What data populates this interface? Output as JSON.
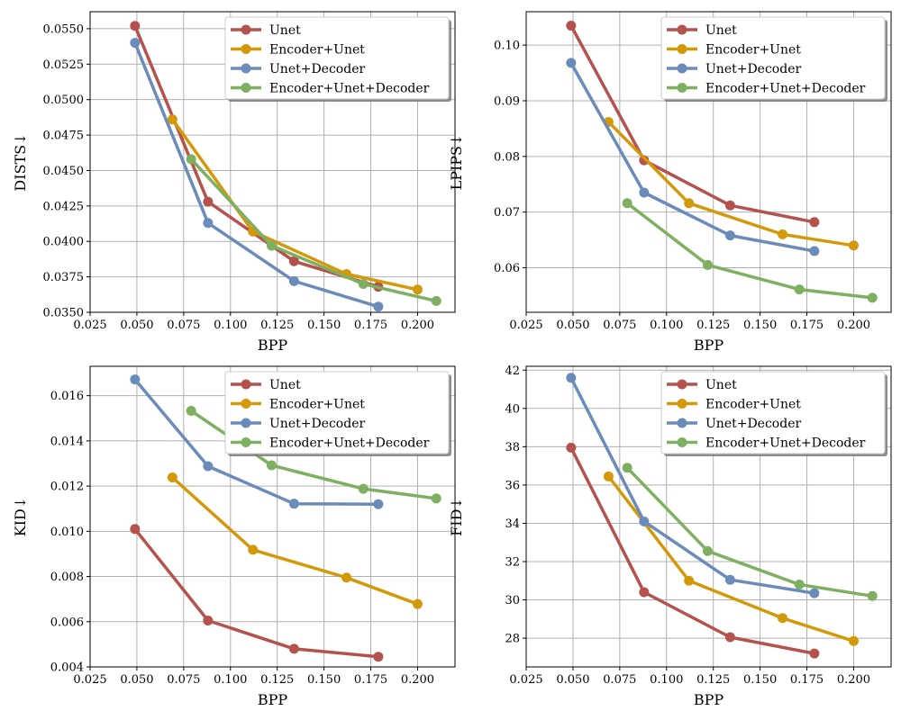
{
  "colors": {
    "Unet": "#b5524e",
    "Encoder+Unet": "#d4990a",
    "Unet+Decoder": "#6b8cba",
    "Encoder+Unet+Decoder": "#7fb061"
  },
  "chart_data": [
    {
      "type": "line",
      "xlabel": "BPP",
      "ylabel": "DISTS↓",
      "xlim": [
        0.025,
        0.22
      ],
      "ylim": [
        0.035,
        0.0562
      ],
      "xticks": [
        0.025,
        0.05,
        0.075,
        0.1,
        0.125,
        0.15,
        0.175,
        0.2
      ],
      "xtick_labels": [
        "0.025",
        "0.050",
        "0.075",
        "0.100",
        "0.125",
        "0.150",
        "0.175",
        "0.200"
      ],
      "yticks": [
        0.035,
        0.0375,
        0.04,
        0.0425,
        0.045,
        0.0475,
        0.05,
        0.0525,
        0.055
      ],
      "ytick_labels": [
        "0.0350",
        "0.0375",
        "0.0400",
        "0.0425",
        "0.0450",
        "0.0475",
        "0.0500",
        "0.0525",
        "0.0550"
      ],
      "legend_position": "top-right",
      "series": [
        {
          "name": "Unet",
          "x": [
            0.049,
            0.088,
            0.134,
            0.179
          ],
          "y": [
            0.0552,
            0.0428,
            0.0386,
            0.0368
          ]
        },
        {
          "name": "Encoder+Unet",
          "x": [
            0.069,
            0.112,
            0.162,
            0.2
          ],
          "y": [
            0.0486,
            0.0407,
            0.0377,
            0.0366
          ]
        },
        {
          "name": "Unet+Decoder",
          "x": [
            0.049,
            0.088,
            0.134,
            0.179
          ],
          "y": [
            0.054,
            0.0413,
            0.0372,
            0.0354
          ]
        },
        {
          "name": "Encoder+Unet+Decoder",
          "x": [
            0.079,
            0.122,
            0.171,
            0.21
          ],
          "y": [
            0.0458,
            0.0397,
            0.037,
            0.0358
          ]
        }
      ]
    },
    {
      "type": "line",
      "xlabel": "BPP",
      "ylabel": "LPIPS↓",
      "xlim": [
        0.025,
        0.22
      ],
      "ylim": [
        0.052,
        0.106
      ],
      "xticks": [
        0.025,
        0.05,
        0.075,
        0.1,
        0.125,
        0.15,
        0.175,
        0.2
      ],
      "xtick_labels": [
        "0.025",
        "0.050",
        "0.075",
        "0.100",
        "0.125",
        "0.150",
        "0.175",
        "0.200"
      ],
      "yticks": [
        0.06,
        0.07,
        0.08,
        0.09,
        0.1
      ],
      "ytick_labels": [
        "0.06",
        "0.07",
        "0.08",
        "0.09",
        "0.10"
      ],
      "legend_position": "top-right",
      "series": [
        {
          "name": "Unet",
          "x": [
            0.049,
            0.088,
            0.134,
            0.179
          ],
          "y": [
            0.1035,
            0.0793,
            0.0712,
            0.0682
          ]
        },
        {
          "name": "Encoder+Unet",
          "x": [
            0.069,
            0.112,
            0.162,
            0.2
          ],
          "y": [
            0.0862,
            0.0716,
            0.066,
            0.064
          ]
        },
        {
          "name": "Unet+Decoder",
          "x": [
            0.049,
            0.088,
            0.134,
            0.179
          ],
          "y": [
            0.0968,
            0.0735,
            0.0658,
            0.063
          ]
        },
        {
          "name": "Encoder+Unet+Decoder",
          "x": [
            0.079,
            0.122,
            0.171,
            0.21
          ],
          "y": [
            0.0716,
            0.0605,
            0.0561,
            0.0546
          ]
        }
      ]
    },
    {
      "type": "line",
      "xlabel": "BPP",
      "ylabel": "KID↓",
      "xlim": [
        0.025,
        0.22
      ],
      "ylim": [
        0.004,
        0.0173
      ],
      "xticks": [
        0.025,
        0.05,
        0.075,
        0.1,
        0.125,
        0.15,
        0.175,
        0.2
      ],
      "xtick_labels": [
        "0.025",
        "0.050",
        "0.075",
        "0.100",
        "0.125",
        "0.150",
        "0.175",
        "0.200"
      ],
      "yticks": [
        0.004,
        0.006,
        0.008,
        0.01,
        0.012,
        0.014,
        0.016
      ],
      "ytick_labels": [
        "0.004",
        "0.006",
        "0.008",
        "0.010",
        "0.012",
        "0.014",
        "0.016"
      ],
      "legend_position": "top-right",
      "series": [
        {
          "name": "Unet",
          "x": [
            0.049,
            0.088,
            0.134,
            0.179
          ],
          "y": [
            0.0101,
            0.00605,
            0.0048,
            0.00445
          ]
        },
        {
          "name": "Encoder+Unet",
          "x": [
            0.069,
            0.112,
            0.162,
            0.2
          ],
          "y": [
            0.01238,
            0.00918,
            0.00795,
            0.00678
          ]
        },
        {
          "name": "Unet+Decoder",
          "x": [
            0.049,
            0.088,
            0.134,
            0.179
          ],
          "y": [
            0.01672,
            0.01288,
            0.01122,
            0.0112
          ]
        },
        {
          "name": "Encoder+Unet+Decoder",
          "x": [
            0.079,
            0.122,
            0.171,
            0.21
          ],
          "y": [
            0.01533,
            0.01292,
            0.01188,
            0.01145
          ]
        }
      ]
    },
    {
      "type": "line",
      "xlabel": "BPP",
      "ylabel": "FID↓",
      "xlim": [
        0.025,
        0.22
      ],
      "ylim": [
        26.5,
        42.2
      ],
      "xticks": [
        0.025,
        0.05,
        0.075,
        0.1,
        0.125,
        0.15,
        0.175,
        0.2
      ],
      "xtick_labels": [
        "0.025",
        "0.050",
        "0.075",
        "0.100",
        "0.125",
        "0.150",
        "0.175",
        "0.200"
      ],
      "yticks": [
        28,
        30,
        32,
        34,
        36,
        38,
        40,
        42
      ],
      "ytick_labels": [
        "28",
        "30",
        "32",
        "34",
        "36",
        "38",
        "40",
        "42"
      ],
      "legend_position": "top-right",
      "series": [
        {
          "name": "Unet",
          "x": [
            0.049,
            0.088,
            0.134,
            0.179
          ],
          "y": [
            37.95,
            30.4,
            28.05,
            27.2
          ]
        },
        {
          "name": "Encoder+Unet",
          "x": [
            0.069,
            0.112,
            0.162,
            0.2
          ],
          "y": [
            36.45,
            31.0,
            29.05,
            27.85
          ]
        },
        {
          "name": "Unet+Decoder",
          "x": [
            0.049,
            0.088,
            0.134,
            0.179
          ],
          "y": [
            41.6,
            34.1,
            31.05,
            30.35
          ]
        },
        {
          "name": "Encoder+Unet+Decoder",
          "x": [
            0.079,
            0.122,
            0.171,
            0.21
          ],
          "y": [
            36.9,
            32.55,
            30.8,
            30.2
          ]
        }
      ]
    }
  ]
}
